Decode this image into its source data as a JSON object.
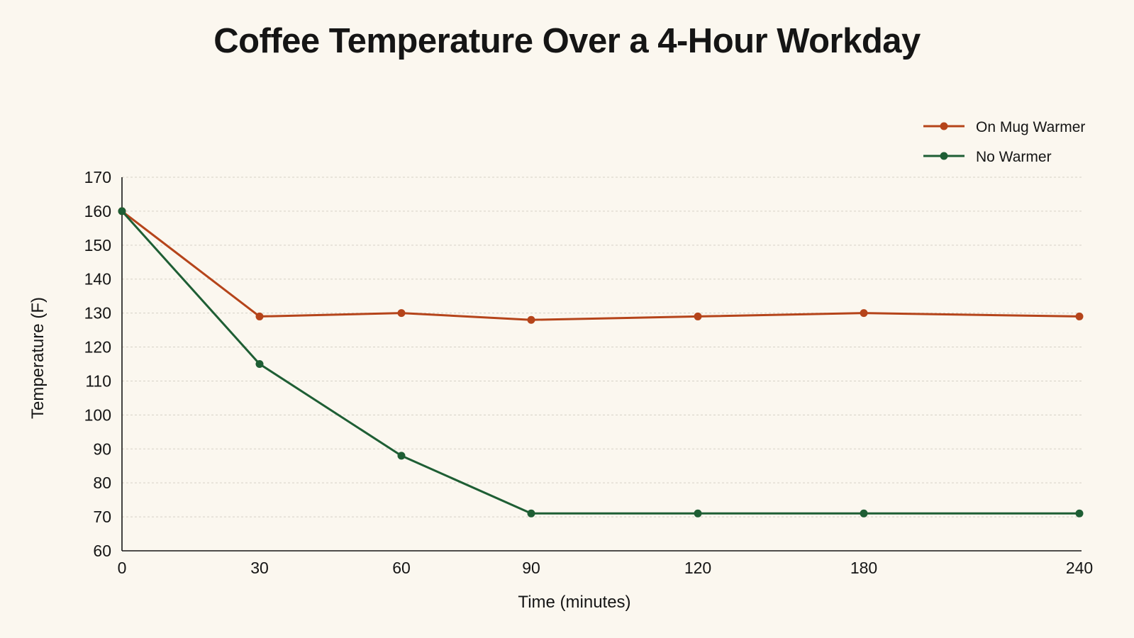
{
  "chart_data": {
    "type": "line",
    "title": "Coffee Temperature Over a 4-Hour Workday",
    "xlabel": "Time (minutes)",
    "ylabel": "Temperature (F)",
    "x_ticks": [
      "0",
      "30",
      "60",
      "90",
      "120",
      "180",
      "240"
    ],
    "y_ticks": [
      60,
      70,
      80,
      90,
      100,
      110,
      120,
      130,
      140,
      150,
      160,
      170
    ],
    "ylim": [
      60,
      170
    ],
    "grid": true,
    "legend_position": "top-right",
    "series": [
      {
        "name": "On Mug Warmer",
        "color": "#b5441a",
        "points": [
          {
            "x": "0",
            "y": 160
          },
          {
            "x": "30",
            "y": 129
          },
          {
            "x": "60",
            "y": 130
          },
          {
            "x": "90",
            "y": 128
          },
          {
            "x": "120",
            "y": 129
          },
          {
            "x": "180",
            "y": 130
          },
          {
            "x": "240",
            "y": 129
          }
        ]
      },
      {
        "name": "No Warmer",
        "color": "#1e5e34",
        "points": [
          {
            "x": "0",
            "y": 160
          },
          {
            "x": "30",
            "y": 115
          },
          {
            "x": "60",
            "y": 88
          },
          {
            "x": "90",
            "y": 71
          },
          {
            "x": "120",
            "y": 71
          },
          {
            "x": "180",
            "y": 71
          },
          {
            "x": "240",
            "y": 71
          }
        ]
      }
    ]
  }
}
